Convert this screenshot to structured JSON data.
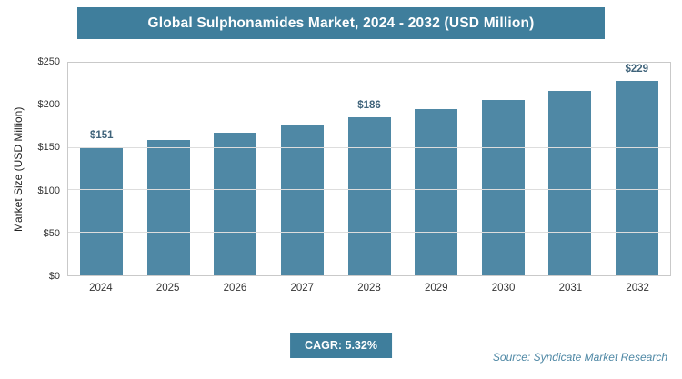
{
  "header": {
    "title": "Global Sulphonamides Market, 2024 - 2032 (USD Million)"
  },
  "chart_data": {
    "type": "bar",
    "title": "Global Sulphonamides Market, 2024 - 2032 (USD Million)",
    "categories": [
      "2024",
      "2025",
      "2026",
      "2027",
      "2028",
      "2029",
      "2030",
      "2031",
      "2032"
    ],
    "values": [
      151,
      159,
      168,
      176,
      186,
      196,
      206,
      217,
      229
    ],
    "point_labels": [
      "$151",
      "",
      "",
      "",
      "$186",
      "",
      "",
      "",
      "$229"
    ],
    "ylabel": "Market Size (USD Million)",
    "xlabel": "",
    "ylim": [
      0,
      250
    ],
    "ytick_values": [
      0,
      50,
      100,
      150,
      200,
      250
    ],
    "ytick_labels": [
      "$0",
      "$50",
      "$100",
      "$150",
      "$200",
      "$250"
    ],
    "grid": "horizontal",
    "legend": "none"
  },
  "footer": {
    "cagr_label": "CAGR: 5.32%",
    "source": "Source: Syndicate Market Research"
  },
  "colors": {
    "accent": "#3f7e9c",
    "bar": "#4f88a5",
    "bar_label": "#3f637a",
    "grid": "#dddddd",
    "plot_border": "#c9c9c9",
    "source_text": "#4f88a5"
  }
}
